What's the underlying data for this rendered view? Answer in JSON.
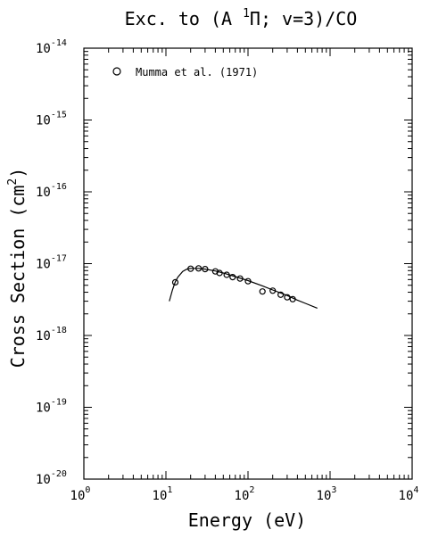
{
  "chart_data": {
    "type": "scatter",
    "title": "Exc. to (A ¹Π; v=3)/CO",
    "title_parts": {
      "prefix": "Exc. to (A ",
      "sup": "1",
      "term": "Π; v=3)/CO"
    },
    "xlabel": "Energy (eV)",
    "ylabel": "Cross Section (cm²)",
    "ylabel_parts": {
      "prefix": "Cross Section (cm",
      "sup": "2",
      "suffix": ")"
    },
    "x_scale": "log",
    "y_scale": "log",
    "xlim": [
      1,
      10000
    ],
    "ylim": [
      1e-20,
      1e-14
    ],
    "x_ticks": [
      {
        "base": "10",
        "exp": "0"
      },
      {
        "base": "10",
        "exp": "1"
      },
      {
        "base": "10",
        "exp": "2"
      },
      {
        "base": "10",
        "exp": "3"
      },
      {
        "base": "10",
        "exp": "4"
      }
    ],
    "y_ticks": [
      {
        "base": "10",
        "exp": "-20"
      },
      {
        "base": "10",
        "exp": "-19"
      },
      {
        "base": "10",
        "exp": "-18"
      },
      {
        "base": "10",
        "exp": "-17"
      },
      {
        "base": "10",
        "exp": "-16"
      },
      {
        "base": "10",
        "exp": "-15"
      },
      {
        "base": "10",
        "exp": "-14"
      }
    ],
    "grid": false,
    "legend": {
      "position": "top-left",
      "entries": [
        "Mumma et al. (1971)"
      ]
    },
    "series": [
      {
        "name": "Mumma et al. (1971)",
        "marker": "circle",
        "x": [
          13,
          20,
          25,
          30,
          40,
          45,
          55,
          65,
          80,
          100,
          150,
          200,
          250,
          300,
          350
        ],
        "y": [
          5.5e-18,
          8.5e-18,
          8.6e-18,
          8.4e-18,
          7.8e-18,
          7.4e-18,
          7e-18,
          6.5e-18,
          6.2e-18,
          5.7e-18,
          4.1e-18,
          4.2e-18,
          3.7e-18,
          3.4e-18,
          3.2e-18
        ]
      },
      {
        "type": "line",
        "x": [
          11,
          12,
          13,
          14,
          16,
          18,
          20,
          25,
          30,
          40,
          50,
          70,
          100,
          150,
          200,
          300,
          400,
          500,
          700
        ],
        "y": [
          3e-18,
          4.3e-18,
          5.6e-18,
          6.5e-18,
          7.8e-18,
          8.4e-18,
          8.6e-18,
          8.6e-18,
          8.4e-18,
          7.9e-18,
          7.4e-18,
          6.6e-18,
          5.8e-18,
          4.9e-18,
          4.3e-18,
          3.6e-18,
          3.1e-18,
          2.8e-18,
          2.4e-18
        ]
      }
    ]
  }
}
